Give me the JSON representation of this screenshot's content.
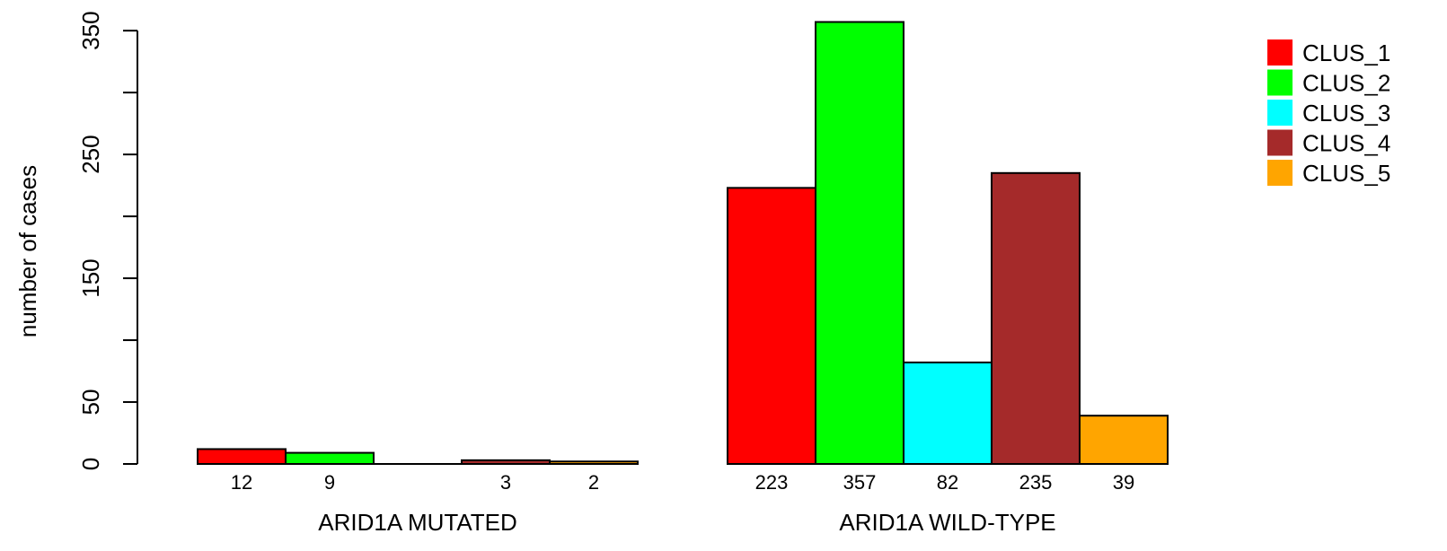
{
  "chart_data": {
    "type": "bar",
    "title": "",
    "xlabel": "",
    "ylabel": "number of cases",
    "ylim": [
      0,
      350
    ],
    "yticks": [
      0,
      50,
      150,
      250,
      350
    ],
    "ytick_minor": [
      100,
      200,
      300
    ],
    "grid": false,
    "legend_position": "top-right",
    "groups": [
      "ARID1A MUTATED",
      "ARID1A WILD-TYPE"
    ],
    "series": [
      {
        "name": "CLUS_1",
        "color": "#ff0000",
        "values": [
          12,
          223
        ],
        "value_labels": [
          "12",
          "223"
        ]
      },
      {
        "name": "CLUS_2",
        "color": "#00ff00",
        "values": [
          9,
          357
        ],
        "value_labels": [
          "9",
          "357"
        ]
      },
      {
        "name": "CLUS_3",
        "color": "#00ffff",
        "values": [
          0,
          82
        ],
        "value_labels": [
          "",
          "82"
        ]
      },
      {
        "name": "CLUS_4",
        "color": "#a52a2a",
        "values": [
          3,
          235
        ],
        "value_labels": [
          "3",
          "235"
        ]
      },
      {
        "name": "CLUS_5",
        "color": "#ffa500",
        "values": [
          2,
          39
        ],
        "value_labels": [
          "2",
          "39"
        ]
      }
    ]
  }
}
